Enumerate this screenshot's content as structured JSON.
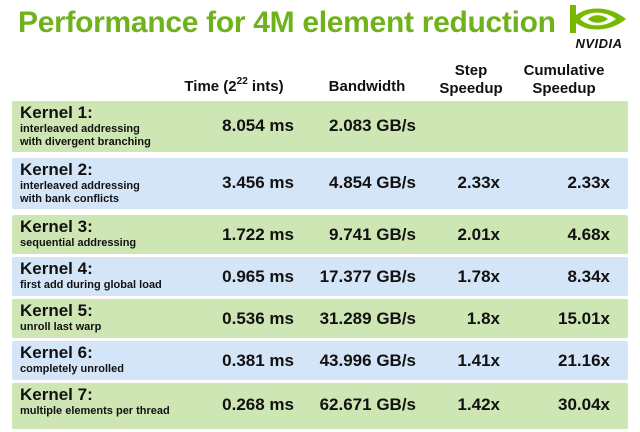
{
  "title": "Performance for 4M element reduction",
  "logo": {
    "wordmark": "NVIDIA",
    "brand_color": "#76b900"
  },
  "headers": {
    "time_prefix": "Time (2",
    "time_exp": "22",
    "time_suffix": " ints)",
    "bandwidth": "Bandwidth",
    "step_line1": "Step",
    "step_line2": "Speedup",
    "cum_line1": "Cumulative",
    "cum_line2": "Speedup"
  },
  "colors": {
    "title": "#6fb21c",
    "row_green": "#cde6b4",
    "row_blue": "#d4e5f8"
  },
  "rows": [
    {
      "name": "Kernel 1:",
      "desc": "interleaved addressing\nwith divergent branching",
      "time": "8.054 ms",
      "bandwidth": "2.083 GB/s",
      "step": "",
      "cumulative": ""
    },
    {
      "name": "Kernel 2:",
      "desc": "interleaved addressing\nwith bank conflicts",
      "time": "3.456 ms",
      "bandwidth": "4.854 GB/s",
      "step": "2.33x",
      "cumulative": "2.33x"
    },
    {
      "name": "Kernel 3:",
      "desc": "sequential addressing",
      "time": "1.722 ms",
      "bandwidth": "9.741 GB/s",
      "step": "2.01x",
      "cumulative": "4.68x"
    },
    {
      "name": "Kernel 4:",
      "desc": "first add during global load",
      "time": "0.965 ms",
      "bandwidth": "17.377 GB/s",
      "step": "1.78x",
      "cumulative": "8.34x"
    },
    {
      "name": "Kernel 5:",
      "desc": "unroll last warp",
      "time": "0.536 ms",
      "bandwidth": "31.289 GB/s",
      "step": "1.8x",
      "cumulative": "15.01x"
    },
    {
      "name": "Kernel 6:",
      "desc": "completely unrolled",
      "time": "0.381 ms",
      "bandwidth": "43.996 GB/s",
      "step": "1.41x",
      "cumulative": "21.16x"
    },
    {
      "name": "Kernel 7:",
      "desc": "multiple elements per thread",
      "time": "0.268 ms",
      "bandwidth": "62.671 GB/s",
      "step": "1.42x",
      "cumulative": "30.04x"
    }
  ]
}
